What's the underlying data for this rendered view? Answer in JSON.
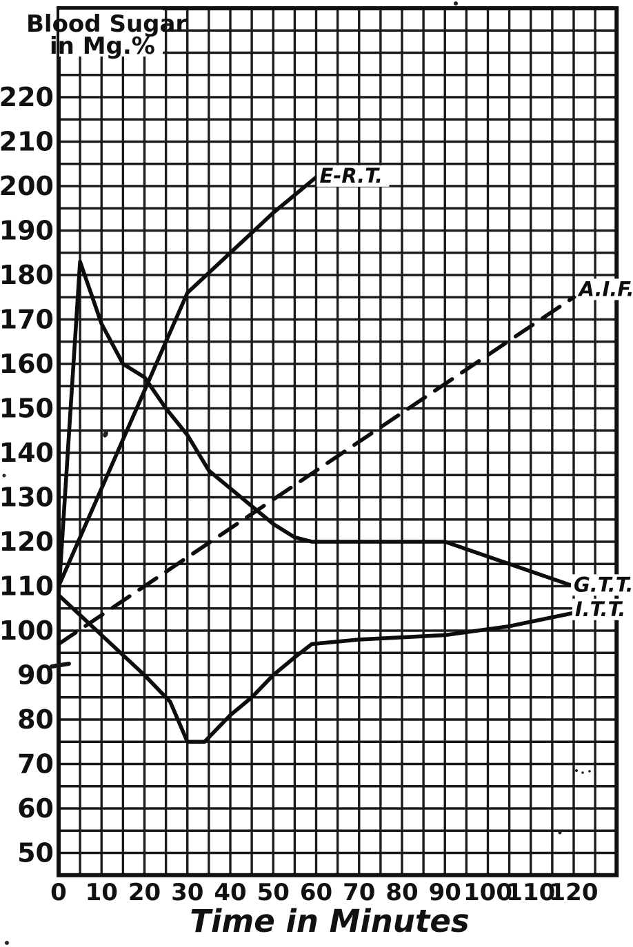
{
  "page": {
    "background": "#ffffff",
    "ink": "#111111",
    "description_title": "Blood Sugar in Mg.%",
    "description_xaxis": "Time in Minutes"
  },
  "chart_data": {
    "type": "line",
    "title_lines": [
      "Blood Sugar",
      "in Mg.%"
    ],
    "ylabel": "Blood Sugar in Mg.%",
    "xlabel": "Time in Minutes",
    "xlim": [
      0,
      130
    ],
    "ylim": [
      45,
      240
    ],
    "grid": true,
    "grid_step_x_minutes": 5,
    "grid_step_y_mg": 5,
    "x_ticks": [
      0,
      10,
      20,
      30,
      40,
      50,
      60,
      70,
      80,
      90,
      100,
      110,
      120
    ],
    "y_ticks": [
      50,
      60,
      70,
      80,
      90,
      100,
      110,
      120,
      130,
      140,
      150,
      160,
      170,
      180,
      190,
      200,
      210,
      220
    ],
    "legend_position": "on-curve-labels",
    "series": [
      {
        "name": "E-R.T.",
        "line_style": "solid",
        "points": [
          [
            0,
            110
          ],
          [
            10,
            132
          ],
          [
            20,
            154
          ],
          [
            30,
            176
          ],
          [
            40,
            185
          ],
          [
            50,
            194
          ],
          [
            60,
            202
          ]
        ],
        "label": {
          "text": "E-R.T.",
          "t": 60.8,
          "v": 202.5
        }
      },
      {
        "name": "G.T.T.",
        "line_style": "solid",
        "points": [
          [
            0,
            108
          ],
          [
            5,
            183
          ],
          [
            10,
            169
          ],
          [
            15,
            160
          ],
          [
            20,
            157
          ],
          [
            25,
            150
          ],
          [
            30,
            144
          ],
          [
            35,
            136
          ],
          [
            40,
            132
          ],
          [
            45,
            128
          ],
          [
            50,
            124
          ],
          [
            55,
            121
          ],
          [
            59,
            120
          ],
          [
            90,
            120
          ],
          [
            120,
            110
          ]
        ],
        "label": {
          "text": "G.T.T.",
          "t": 120.0,
          "v": 110.5
        }
      },
      {
        "name": "I.T.T.",
        "line_style": "solid",
        "points": [
          [
            0,
            108
          ],
          [
            10,
            99
          ],
          [
            20,
            90
          ],
          [
            26,
            84
          ],
          [
            30,
            75
          ],
          [
            34,
            75
          ],
          [
            40,
            81
          ],
          [
            45,
            85
          ],
          [
            50,
            90
          ],
          [
            55,
            94
          ],
          [
            59,
            97
          ],
          [
            70,
            98
          ],
          [
            90,
            99
          ],
          [
            105,
            101
          ],
          [
            120,
            104
          ]
        ],
        "label": {
          "text": "I.T.T.",
          "t": 120.3,
          "v": 105.0
        }
      },
      {
        "name": "A.I.F.",
        "line_style": "dashed",
        "points": [
          [
            0,
            97
          ],
          [
            120,
            175
          ]
        ],
        "label": {
          "text": "A.I.F.",
          "t": 121.2,
          "v": 177.0
        }
      }
    ]
  }
}
